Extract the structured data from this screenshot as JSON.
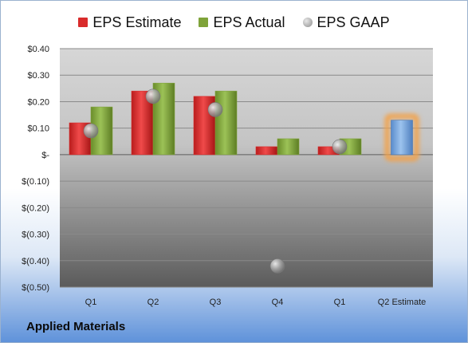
{
  "legend": {
    "estimate": "EPS Estimate",
    "actual": "EPS Actual",
    "gaap": "EPS GAAP"
  },
  "company": "Applied Materials",
  "colors": {
    "estimate": "#d92b2b",
    "actual": "#7fa33a",
    "gaap": "#9a9a9a",
    "forecast": "#6f9fd8",
    "forecast_glow": "#f3a24a"
  },
  "chart_data": {
    "type": "bar",
    "categories": [
      "Q1",
      "Q2",
      "Q3",
      "Q4",
      "Q1",
      "Q2 Estimate"
    ],
    "series": [
      {
        "name": "EPS Estimate",
        "values": [
          0.12,
          0.24,
          0.22,
          0.03,
          0.03,
          null
        ]
      },
      {
        "name": "EPS Actual",
        "values": [
          0.18,
          0.27,
          0.24,
          0.06,
          0.06,
          null
        ]
      },
      {
        "name": "EPS GAAP",
        "values": [
          0.09,
          0.22,
          0.17,
          -0.42,
          0.03,
          null
        ]
      }
    ],
    "forecast": {
      "category": "Q2 Estimate",
      "value": 0.13
    },
    "ylim": [
      -0.5,
      0.4
    ],
    "y_ticks": [
      0.4,
      0.3,
      0.2,
      0.1,
      0,
      -0.1,
      -0.2,
      -0.3,
      -0.4,
      -0.5
    ],
    "y_tick_labels": [
      "$0.40",
      "$0.30",
      "$0.20",
      "$0.10",
      "$-",
      "$(0.10)",
      "$(0.20)",
      "$(0.30)",
      "$(0.40)",
      "$(0.50)"
    ],
    "grid": true,
    "legend_position": "top"
  }
}
